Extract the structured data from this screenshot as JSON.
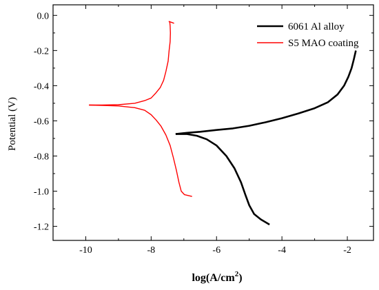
{
  "chart_data": {
    "type": "line",
    "title": "",
    "xlabel": "log(A/cm",
    "xlabel_sup": "2",
    "xlabel_close": ")",
    "ylabel": "Potential (V)",
    "xlim": [
      -11.0,
      -1.2
    ],
    "ylim": [
      -1.28,
      0.06
    ],
    "xticks": [
      -10,
      -8,
      -6,
      -4,
      -2
    ],
    "xtick_labels": [
      "-10",
      "-8",
      "-6",
      "-4",
      "-2"
    ],
    "yticks": [
      0.0,
      -0.2,
      -0.4,
      -0.6,
      -0.8,
      -1.0,
      -1.2
    ],
    "ytick_labels": [
      "0.0",
      "-0.2",
      "-0.4",
      "-0.6",
      "-0.8",
      "-1.0",
      "-1.2"
    ],
    "legend_position": "top-right",
    "series": [
      {
        "name": "6061 Al alloy",
        "color": "#000000",
        "points": [
          [
            -7.25,
            -0.675
          ],
          [
            -6.9,
            -0.668
          ],
          [
            -6.5,
            -0.662
          ],
          [
            -6.0,
            -0.652
          ],
          [
            -5.5,
            -0.643
          ],
          [
            -5.0,
            -0.628
          ],
          [
            -4.5,
            -0.608
          ],
          [
            -4.0,
            -0.585
          ],
          [
            -3.5,
            -0.558
          ],
          [
            -3.0,
            -0.528
          ],
          [
            -2.6,
            -0.495
          ],
          [
            -2.3,
            -0.45
          ],
          [
            -2.1,
            -0.4
          ],
          [
            -1.97,
            -0.35
          ],
          [
            -1.87,
            -0.3
          ],
          [
            -1.8,
            -0.25
          ],
          [
            -1.74,
            -0.2
          ]
        ],
        "points_cathodic": [
          [
            -7.25,
            -0.675
          ],
          [
            -6.9,
            -0.675
          ],
          [
            -6.6,
            -0.685
          ],
          [
            -6.3,
            -0.705
          ],
          [
            -6.0,
            -0.74
          ],
          [
            -5.7,
            -0.8
          ],
          [
            -5.45,
            -0.87
          ],
          [
            -5.25,
            -0.95
          ],
          [
            -5.12,
            -1.02
          ],
          [
            -5.0,
            -1.08
          ],
          [
            -4.85,
            -1.13
          ],
          [
            -4.65,
            -1.16
          ],
          [
            -4.38,
            -1.19
          ]
        ]
      },
      {
        "name": "S5 MAO coating",
        "color": "#ff0000",
        "points": [
          [
            -9.9,
            -0.51
          ],
          [
            -9.5,
            -0.51
          ],
          [
            -9.0,
            -0.508
          ],
          [
            -8.5,
            -0.5
          ],
          [
            -8.2,
            -0.485
          ],
          [
            -8.0,
            -0.47
          ],
          [
            -7.85,
            -0.44
          ],
          [
            -7.72,
            -0.41
          ],
          [
            -7.62,
            -0.37
          ],
          [
            -7.55,
            -0.32
          ],
          [
            -7.48,
            -0.26
          ],
          [
            -7.45,
            -0.2
          ],
          [
            -7.42,
            -0.15
          ],
          [
            -7.41,
            -0.1
          ],
          [
            -7.42,
            -0.06
          ],
          [
            -7.43,
            -0.04
          ],
          [
            -7.45,
            -0.035
          ],
          [
            -7.3,
            -0.045
          ]
        ],
        "points_cathodic": [
          [
            -9.9,
            -0.51
          ],
          [
            -9.5,
            -0.512
          ],
          [
            -9.0,
            -0.515
          ],
          [
            -8.5,
            -0.525
          ],
          [
            -8.2,
            -0.54
          ],
          [
            -8.0,
            -0.565
          ],
          [
            -7.85,
            -0.595
          ],
          [
            -7.7,
            -0.63
          ],
          [
            -7.55,
            -0.68
          ],
          [
            -7.42,
            -0.74
          ],
          [
            -7.32,
            -0.81
          ],
          [
            -7.23,
            -0.88
          ],
          [
            -7.15,
            -0.95
          ],
          [
            -7.08,
            -1.0
          ],
          [
            -6.98,
            -1.02
          ],
          [
            -6.75,
            -1.03
          ]
        ]
      }
    ]
  }
}
